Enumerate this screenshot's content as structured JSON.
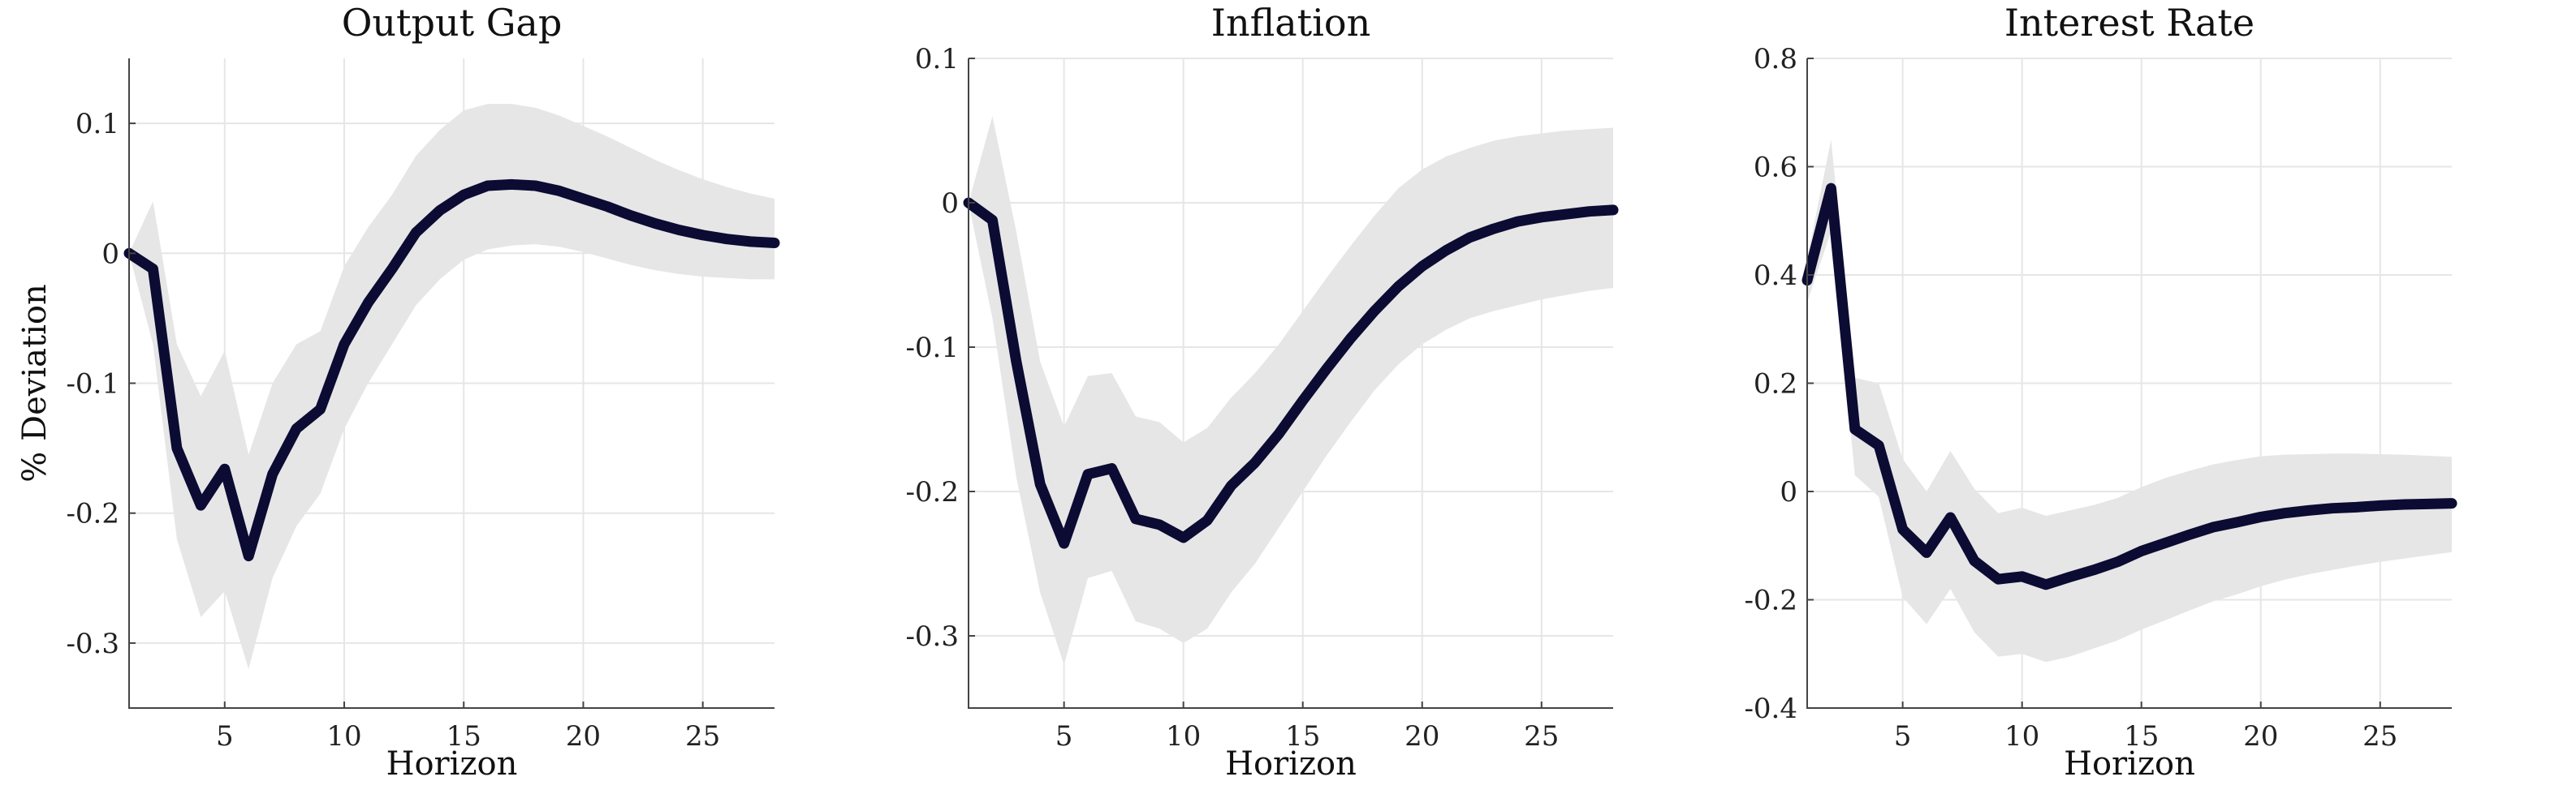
{
  "colors": {
    "line": "#0b0b33",
    "band": "#e6e6e6"
  },
  "chart_data": [
    {
      "type": "line",
      "title": "Output Gap",
      "xlabel": "Horizon",
      "ylabel": "% Deviation",
      "xlim": [
        1,
        28
      ],
      "ylim": [
        -0.35,
        0.15
      ],
      "xticks": [
        5,
        10,
        15,
        20,
        25
      ],
      "yticks": [
        -0.3,
        -0.2,
        -0.1,
        0,
        0.1
      ],
      "ytick_labels": [
        "-0.3",
        "-0.2",
        "-0.1",
        "0",
        "0.1"
      ],
      "grid": true,
      "x": [
        1,
        2,
        3,
        4,
        5,
        6,
        7,
        8,
        9,
        10,
        11,
        12,
        13,
        14,
        15,
        16,
        17,
        18,
        19,
        20,
        21,
        22,
        23,
        24,
        25,
        26,
        27,
        28
      ],
      "series": [
        {
          "values": [
            0,
            -0.012,
            -0.15,
            -0.194,
            -0.166,
            -0.233,
            -0.17,
            -0.135,
            -0.12,
            -0.07,
            -0.038,
            -0.012,
            0.016,
            0.033,
            0.045,
            0.052,
            0.053,
            0.052,
            0.048,
            0.042,
            0.036,
            0.029,
            0.023,
            0.018,
            0.014,
            0.011,
            0.009,
            0.008
          ],
          "lower": [
            0,
            -0.07,
            -0.22,
            -0.28,
            -0.26,
            -0.32,
            -0.25,
            -0.21,
            -0.185,
            -0.135,
            -0.1,
            -0.07,
            -0.04,
            -0.02,
            -0.005,
            0.003,
            0.006,
            0.007,
            0.005,
            0.001,
            -0.004,
            -0.009,
            -0.013,
            -0.016,
            -0.018,
            -0.019,
            -0.02,
            -0.02
          ],
          "upper": [
            0,
            0.04,
            -0.07,
            -0.11,
            -0.075,
            -0.155,
            -0.1,
            -0.07,
            -0.06,
            -0.01,
            0.02,
            0.045,
            0.075,
            0.095,
            0.11,
            0.115,
            0.115,
            0.112,
            0.106,
            0.098,
            0.09,
            0.081,
            0.072,
            0.064,
            0.057,
            0.051,
            0.046,
            0.042
          ]
        }
      ]
    },
    {
      "type": "line",
      "title": "Inflation",
      "xlabel": "Horizon",
      "ylabel": "",
      "xlim": [
        1,
        28
      ],
      "ylim": [
        -0.35,
        0.1
      ],
      "xticks": [
        5,
        10,
        15,
        20,
        25
      ],
      "yticks": [
        -0.3,
        -0.2,
        -0.1,
        0,
        0.1
      ],
      "ytick_labels": [
        "-0.3",
        "-0.2",
        "-0.1",
        "0",
        "0.1"
      ],
      "grid": true,
      "x": [
        1,
        2,
        3,
        4,
        5,
        6,
        7,
        8,
        9,
        10,
        11,
        12,
        13,
        14,
        15,
        16,
        17,
        18,
        19,
        20,
        21,
        22,
        23,
        24,
        25,
        26,
        27,
        28
      ],
      "series": [
        {
          "values": [
            0,
            -0.012,
            -0.11,
            -0.195,
            -0.236,
            -0.188,
            -0.184,
            -0.219,
            -0.223,
            -0.232,
            -0.22,
            -0.196,
            -0.18,
            -0.16,
            -0.137,
            -0.115,
            -0.094,
            -0.075,
            -0.058,
            -0.044,
            -0.033,
            -0.024,
            -0.018,
            -0.013,
            -0.01,
            -0.008,
            -0.006,
            -0.005
          ],
          "lower": [
            0,
            -0.08,
            -0.19,
            -0.27,
            -0.32,
            -0.26,
            -0.255,
            -0.29,
            -0.295,
            -0.305,
            -0.295,
            -0.27,
            -0.25,
            -0.225,
            -0.2,
            -0.175,
            -0.152,
            -0.13,
            -0.112,
            -0.098,
            -0.088,
            -0.08,
            -0.075,
            -0.071,
            -0.067,
            -0.064,
            -0.061,
            -0.059
          ],
          "upper": [
            0,
            0.06,
            -0.02,
            -0.11,
            -0.155,
            -0.12,
            -0.118,
            -0.148,
            -0.152,
            -0.166,
            -0.156,
            -0.135,
            -0.118,
            -0.098,
            -0.075,
            -0.052,
            -0.03,
            -0.009,
            0.01,
            0.023,
            0.032,
            0.038,
            0.043,
            0.046,
            0.048,
            0.05,
            0.051,
            0.052
          ]
        }
      ]
    },
    {
      "type": "line",
      "title": "Interest Rate",
      "xlabel": "Horizon",
      "ylabel": "",
      "xlim": [
        1,
        28
      ],
      "ylim": [
        -0.4,
        0.8
      ],
      "xticks": [
        5,
        10,
        15,
        20,
        25
      ],
      "yticks": [
        -0.4,
        -0.2,
        0,
        0.2,
        0.4,
        0.6,
        0.8
      ],
      "ytick_labels": [
        "-0.4",
        "-0.2",
        "0",
        "0.2",
        "0.4",
        "0.6",
        "0.8"
      ],
      "grid": true,
      "x": [
        1,
        2,
        3,
        4,
        5,
        6,
        7,
        8,
        9,
        10,
        11,
        12,
        13,
        14,
        15,
        16,
        17,
        18,
        19,
        20,
        21,
        22,
        23,
        24,
        25,
        26,
        27,
        28
      ],
      "series": [
        {
          "values": [
            0.39,
            0.56,
            0.115,
            0.085,
            -0.07,
            -0.113,
            -0.048,
            -0.128,
            -0.162,
            -0.157,
            -0.172,
            -0.158,
            -0.145,
            -0.13,
            -0.11,
            -0.095,
            -0.08,
            -0.066,
            -0.057,
            -0.047,
            -0.04,
            -0.035,
            -0.031,
            -0.029,
            -0.026,
            -0.024,
            -0.023,
            -0.022
          ],
          "lower": [
            0.35,
            0.48,
            0.03,
            -0.01,
            -0.195,
            -0.245,
            -0.18,
            -0.26,
            -0.305,
            -0.3,
            -0.315,
            -0.305,
            -0.29,
            -0.275,
            -0.255,
            -0.238,
            -0.22,
            -0.203,
            -0.19,
            -0.175,
            -0.163,
            -0.153,
            -0.145,
            -0.137,
            -0.13,
            -0.124,
            -0.118,
            -0.112
          ],
          "upper": [
            0.43,
            0.65,
            0.21,
            0.2,
            0.06,
            0.0,
            0.075,
            0.005,
            -0.04,
            -0.03,
            -0.045,
            -0.035,
            -0.025,
            -0.012,
            0.008,
            0.025,
            0.038,
            0.05,
            0.058,
            0.065,
            0.068,
            0.069,
            0.07,
            0.07,
            0.069,
            0.068,
            0.066,
            0.064
          ]
        }
      ]
    }
  ]
}
